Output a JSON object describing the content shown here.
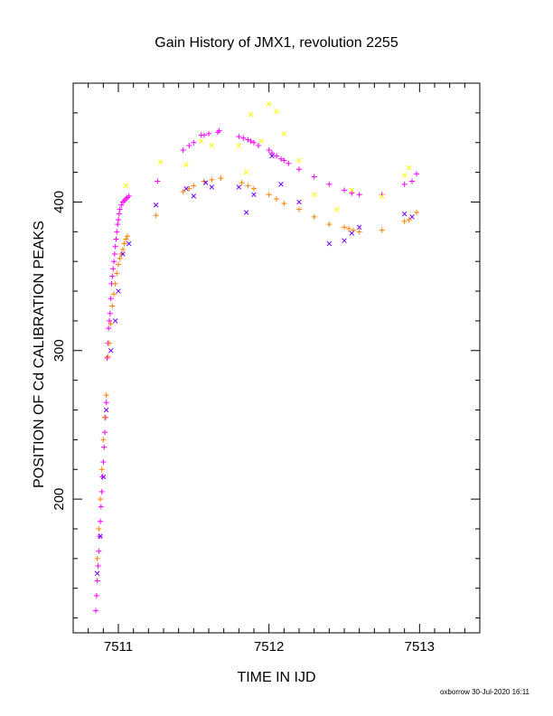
{
  "chart_data": {
    "type": "scatter",
    "title": "Gain History of JMX1, revolution 2255",
    "xlabel": "TIME IN IJD",
    "ylabel": "POSITION OF Cd CALIBRATION PEAKS",
    "xlim": [
      7510.7,
      7513.4
    ],
    "ylim": [
      110,
      480
    ],
    "x_ticks": [
      7511,
      7512,
      7513
    ],
    "y_ticks": [
      200,
      300,
      400
    ],
    "x_tick_labels": [
      "7511",
      "7512",
      "7513"
    ],
    "y_tick_labels": [
      "200",
      "300",
      "400"
    ],
    "grid": false,
    "series": [
      {
        "marker": "plus",
        "color": "#ff00ff",
        "x": [
          7510.85,
          7510.855,
          7510.86,
          7510.865,
          7510.87,
          7510.875,
          7510.88,
          7510.885,
          7510.89,
          7510.895,
          7510.9,
          7510.905,
          7510.91,
          7510.915,
          7510.92,
          7510.925,
          7510.93,
          7510.935,
          7510.94,
          7510.945,
          7510.95,
          7510.955,
          7510.96,
          7510.965,
          7510.97,
          7510.975,
          7510.98,
          7510.985,
          7510.99,
          7510.995,
          7511.0,
          7511.005,
          7511.01,
          7511.02,
          7511.03,
          7511.04,
          7511.05,
          7511.06,
          7511.07,
          7511.26,
          7511.43,
          7511.47,
          7511.5,
          7511.55,
          7511.57,
          7511.6,
          7511.66,
          7511.67,
          7511.8,
          7511.83,
          7511.86,
          7511.88,
          7511.9,
          7511.93,
          7512.0,
          7512.02,
          7512.05,
          7512.08,
          7512.1,
          7512.13,
          7512.2,
          7512.3,
          7512.4,
          7512.5,
          7512.55,
          7512.6,
          7512.75,
          7512.9,
          7512.95,
          7512.98
        ],
        "y": [
          125,
          135,
          145,
          155,
          165,
          175,
          185,
          195,
          205,
          215,
          225,
          235,
          245,
          255,
          265,
          295,
          305,
          315,
          320,
          325,
          335,
          345,
          350,
          355,
          360,
          365,
          370,
          375,
          380,
          385,
          388,
          392,
          395,
          398,
          400,
          401,
          402,
          403,
          404,
          414,
          435,
          438,
          440,
          445,
          445,
          446,
          447,
          448,
          444,
          443,
          442,
          441,
          440,
          438,
          435,
          433,
          431,
          429,
          428,
          426,
          422,
          417,
          412,
          408,
          406,
          405,
          405,
          412,
          414,
          419
        ]
      },
      {
        "marker": "plus",
        "color": "#ff8000",
        "x": [
          7510.86,
          7510.87,
          7510.88,
          7510.89,
          7510.9,
          7510.91,
          7510.92,
          7510.93,
          7510.94,
          7510.95,
          7510.96,
          7510.97,
          7510.98,
          7510.99,
          7511.0,
          7511.01,
          7511.02,
          7511.03,
          7511.04,
          7511.05,
          7511.06,
          7511.25,
          7511.43,
          7511.47,
          7511.5,
          7511.57,
          7511.62,
          7511.68,
          7511.82,
          7511.86,
          7511.9,
          7512.0,
          7512.05,
          7512.1,
          7512.2,
          7512.3,
          7512.4,
          7512.5,
          7512.53,
          7512.56,
          7512.6,
          7512.75,
          7512.9,
          7512.93,
          7512.98
        ],
        "y": [
          160,
          180,
          200,
          220,
          240,
          255,
          270,
          296,
          305,
          318,
          330,
          338,
          345,
          352,
          358,
          362,
          365,
          368,
          372,
          375,
          377,
          391,
          407,
          409,
          411,
          414,
          415,
          416,
          413,
          411,
          409,
          405,
          402,
          399,
          395,
          390,
          385,
          383,
          382,
          381,
          380,
          381,
          387,
          388,
          393
        ]
      },
      {
        "marker": "cross",
        "color": "#7000ff",
        "x": [
          7510.86,
          7510.88,
          7510.9,
          7510.92,
          7510.95,
          7510.98,
          7511.0,
          7511.03,
          7511.07,
          7511.25,
          7511.45,
          7511.5,
          7511.58,
          7511.62,
          7511.8,
          7511.85,
          7511.9,
          7512.02,
          7512.08,
          7512.2,
          7512.4,
          7512.5,
          7512.55,
          7512.6,
          7512.9,
          7512.95
        ],
        "y": [
          150,
          175,
          215,
          260,
          300,
          320,
          340,
          365,
          372,
          398,
          409,
          404,
          413,
          410,
          410,
          393,
          405,
          431,
          412,
          400,
          372,
          374,
          379,
          383,
          392,
          390
        ]
      },
      {
        "marker": "cross",
        "color": "#ffff00",
        "x": [
          7511.05,
          7511.28,
          7511.45,
          7511.55,
          7511.62,
          7511.8,
          7511.85,
          7511.88,
          7511.95,
          7512.0,
          7512.05,
          7512.1,
          7512.2,
          7512.3,
          7512.45,
          7512.55,
          7512.75,
          7512.9,
          7512.93
        ],
        "y": [
          411,
          427,
          425,
          441,
          438,
          438,
          420,
          459,
          441,
          466,
          461,
          446,
          428,
          405,
          395,
          408,
          404,
          418,
          423
        ]
      }
    ]
  },
  "footer_text": "oxborrow 30-Jul-2020 16:11"
}
